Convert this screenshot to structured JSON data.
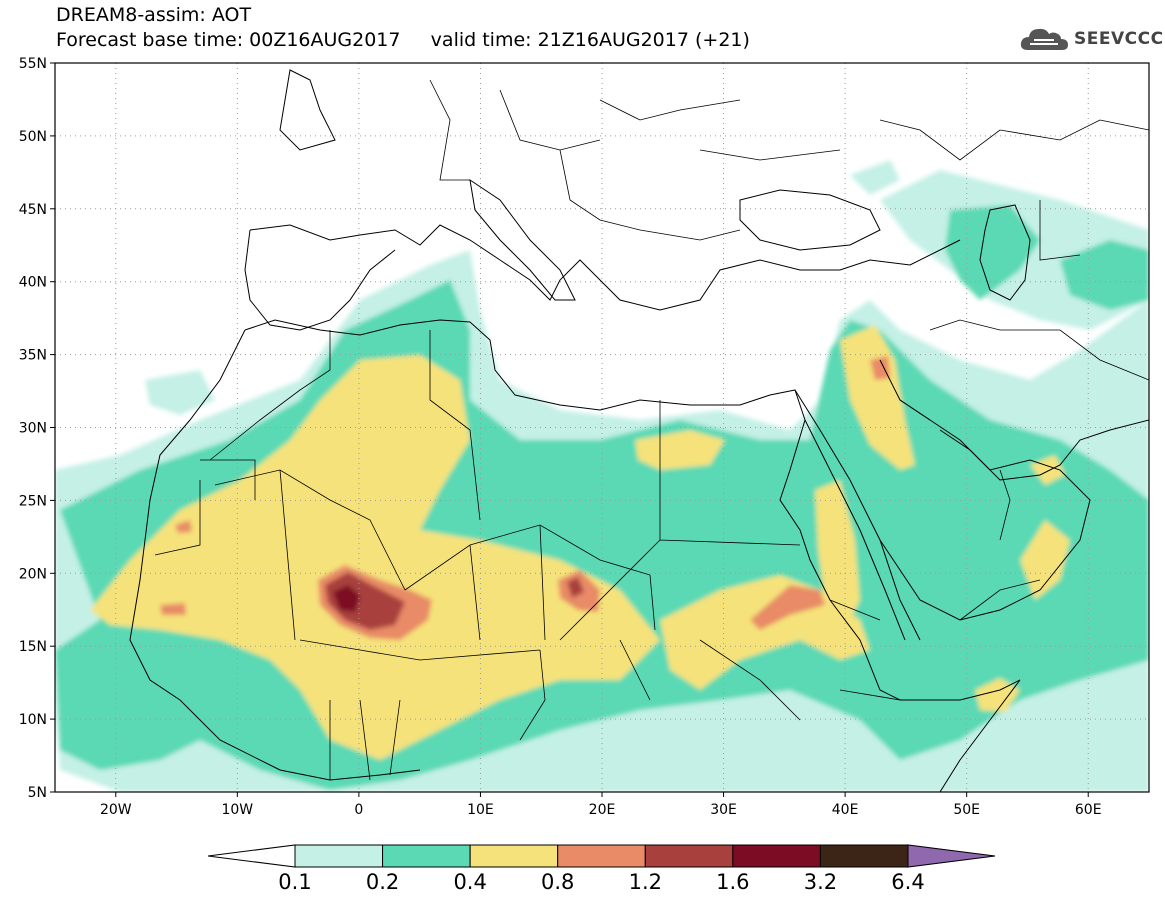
{
  "header": {
    "line1": "DREAM8-assim: AOT",
    "line2": "Forecast base time: 00Z16AUG2017     valid time: 21Z16AUG2017 (+21)"
  },
  "logo": {
    "text": "SEEVCCC",
    "icon": "cloud-logo-icon"
  },
  "map": {
    "projection": "lat-lon",
    "lon_range": [
      -25,
      65
    ],
    "lat_range": [
      5,
      55
    ],
    "lat_ticks": [
      {
        "value": 55,
        "label": "55N"
      },
      {
        "value": 50,
        "label": "50N"
      },
      {
        "value": 45,
        "label": "45N"
      },
      {
        "value": 40,
        "label": "40N"
      },
      {
        "value": 35,
        "label": "35N"
      },
      {
        "value": 30,
        "label": "30N"
      },
      {
        "value": 25,
        "label": "25N"
      },
      {
        "value": 20,
        "label": "20N"
      },
      {
        "value": 15,
        "label": "15N"
      },
      {
        "value": 10,
        "label": "10N"
      },
      {
        "value": 5,
        "label": "5N"
      }
    ],
    "lon_ticks": [
      {
        "value": -20,
        "label": "20W"
      },
      {
        "value": -10,
        "label": "10W"
      },
      {
        "value": 0,
        "label": "0"
      },
      {
        "value": 10,
        "label": "10E"
      },
      {
        "value": 20,
        "label": "20E"
      },
      {
        "value": 30,
        "label": "30E"
      },
      {
        "value": 40,
        "label": "40E"
      },
      {
        "value": 50,
        "label": "50E"
      },
      {
        "value": 60,
        "label": "60E"
      }
    ],
    "grid": "dotted"
  },
  "colorbar": {
    "labels": [
      "0.1",
      "0.2",
      "0.4",
      "0.8",
      "1.2",
      "1.6",
      "3.2",
      "6.4"
    ],
    "colors": [
      "#c4f0e6",
      "#5ad9b4",
      "#f5e27a",
      "#e88b66",
      "#a8413e",
      "#7c0c23",
      "#3c2416",
      "#8f68ae"
    ],
    "extend": "both"
  },
  "aot_levels": {
    "c1": "#c4f0e6",
    "c2": "#5ad9b4",
    "c3": "#f5e27a",
    "c4": "#e88b66",
    "c5": "#a8413e",
    "c6": "#7c0c23"
  }
}
